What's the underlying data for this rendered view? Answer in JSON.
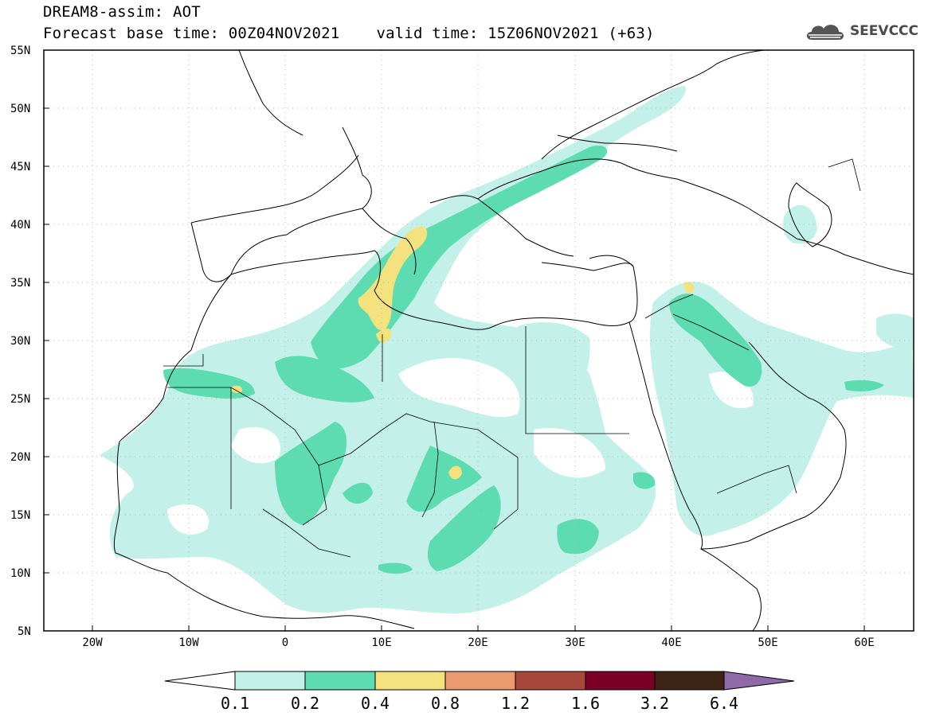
{
  "header": {
    "title": "DREAM8-assim: AOT",
    "base_time": "Forecast base time: 00Z04NOV2021",
    "valid_time": "valid time: 15Z06NOV2021 (+63)"
  },
  "logo": {
    "text": "SEEVCCC",
    "icon": "cloud-icon"
  },
  "map": {
    "lon_range": [
      -25,
      65
    ],
    "lat_range": [
      5,
      55
    ],
    "lat_ticks": [
      "55N",
      "50N",
      "45N",
      "40N",
      "35N",
      "30N",
      "25N",
      "20N",
      "15N",
      "10N",
      "5N"
    ],
    "lon_ticks": [
      "20W",
      "10W",
      "0",
      "10E",
      "20E",
      "30E",
      "40E",
      "50E",
      "60E"
    ],
    "grid": true
  },
  "colorbar": {
    "labels": [
      "0.1",
      "0.2",
      "0.4",
      "0.8",
      "1.2",
      "1.6",
      "3.2",
      "6.4"
    ],
    "colors": [
      "#ffffff",
      "#c3f1ea",
      "#5cdcb0",
      "#f3e27e",
      "#e99a6e",
      "#a8483b",
      "#7a0026",
      "#3d2414",
      "#8e6aa9"
    ]
  }
}
